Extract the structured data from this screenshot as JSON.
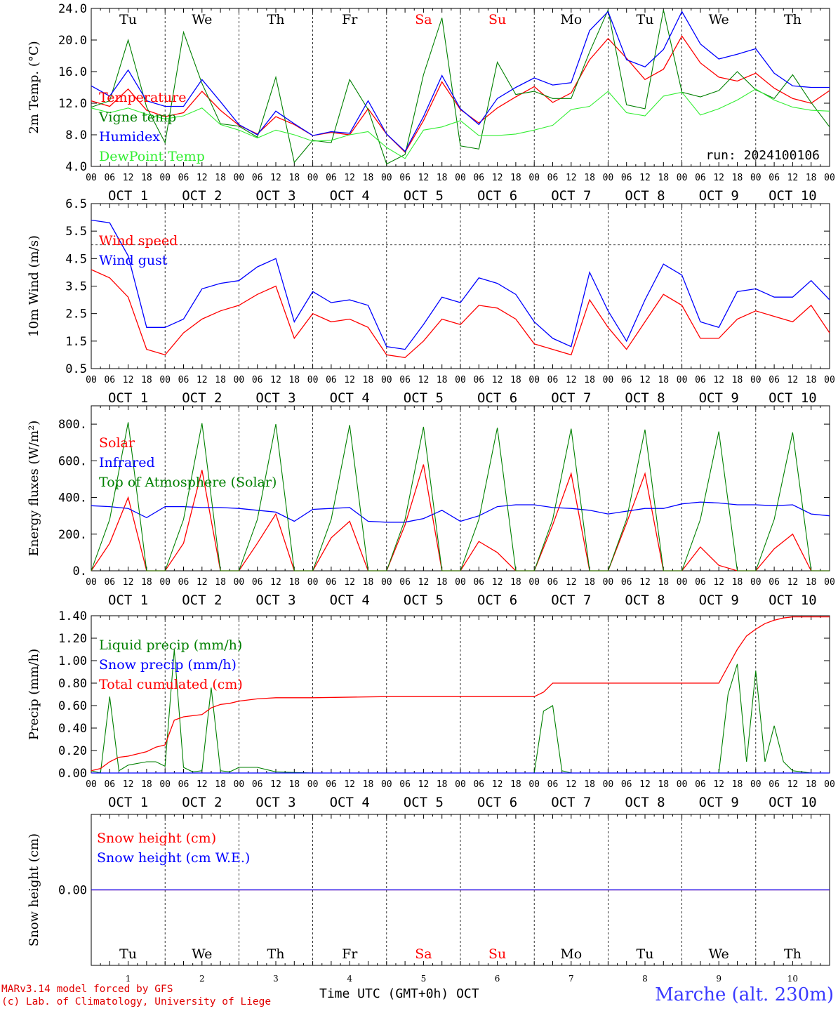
{
  "run_label": "run: 2024100106",
  "station": "Marche (alt. 230m)",
  "footer": {
    "line1": "MARv3.14 model forced by GFS",
    "line2": "(c) Lab. of Climatology, University of Liege"
  },
  "x_title": "Time UTC (GMT+0h) OCT",
  "days": [
    "Tu",
    "We",
    "Th",
    "Fr",
    "Sa",
    "Su",
    "Mo",
    "Tu",
    "We",
    "Th"
  ],
  "weekend_days": [
    4,
    5
  ],
  "date_labels": [
    "OCT  1",
    "OCT  2",
    "OCT  3",
    "OCT  4",
    "OCT  5",
    "OCT  6",
    "OCT  7",
    "OCT  8",
    "OCT  9",
    "OCT 10"
  ],
  "day_numbers": [
    "1",
    "2",
    "3",
    "4",
    "5",
    "6",
    "7",
    "8",
    "9",
    "10"
  ],
  "hour_ticks": [
    "00",
    "06",
    "12",
    "18"
  ],
  "final_tick": "00",
  "colors": {
    "red": "#ff0000",
    "dark_green": "#008000",
    "blue": "#0000ff",
    "light_green": "#33ee33",
    "purple": "#7030a0",
    "day_weekend": "#ff0000"
  },
  "chart_data": [
    {
      "type": "line",
      "ylabel": "2m Temp. (°C)",
      "ylim": [
        4.0,
        24.0
      ],
      "yticks": [
        "4.0",
        "8.0",
        "12.0",
        "16.0",
        "20.0",
        "24.0"
      ],
      "x": [
        0,
        6,
        12,
        18,
        24,
        30,
        36,
        42,
        48,
        54,
        60,
        66,
        72,
        78,
        84,
        90,
        96,
        102,
        108,
        114,
        120,
        126,
        132,
        138,
        144,
        150,
        156,
        162,
        168,
        174,
        180,
        186,
        192,
        198,
        204,
        210,
        216,
        222,
        228,
        234,
        240
      ],
      "series": [
        {
          "name": "Temperature",
          "color": "red",
          "values": [
            12.3,
            11.6,
            13.8,
            11.1,
            10.3,
            10.8,
            13.5,
            11.1,
            9.2,
            8.1,
            10.3,
            9.3,
            7.9,
            8.3,
            8.0,
            11.3,
            8.1,
            5.8,
            9.8,
            14.7,
            11.2,
            9.5,
            11.4,
            12.8,
            14.1,
            12.1,
            13.3,
            17.5,
            20.2,
            17.7,
            15.0,
            16.3,
            20.5,
            17.1,
            15.3,
            14.8,
            15.8,
            13.9,
            12.6,
            12.0,
            13.6
          ]
        },
        {
          "name": "Vigne temp",
          "color": "dark_green",
          "values": [
            11.5,
            12.3,
            20.0,
            11.5,
            7.0,
            21.0,
            14.5,
            9.4,
            9.1,
            7.7,
            15.3,
            4.5,
            7.3,
            7.0,
            15.0,
            11.2,
            4.3,
            5.5,
            15.6,
            22.8,
            6.6,
            6.2,
            17.2,
            13.1,
            13.5,
            12.6,
            12.6,
            18.5,
            23.8,
            11.8,
            11.3,
            23.8,
            13.4,
            12.8,
            13.6,
            16.0,
            13.7,
            12.6,
            15.6,
            12.1,
            9.0
          ]
        },
        {
          "name": "Humidex",
          "color": "blue",
          "values": [
            14.2,
            12.9,
            16.2,
            12.3,
            11.6,
            11.6,
            15.0,
            12.2,
            9.3,
            8.0,
            11.0,
            9.4,
            7.9,
            8.4,
            8.2,
            12.3,
            8.1,
            5.9,
            10.3,
            15.5,
            11.3,
            9.3,
            12.6,
            14.0,
            15.2,
            14.3,
            14.6,
            21.2,
            23.6,
            17.5,
            16.6,
            18.8,
            23.6,
            19.5,
            17.6,
            18.2,
            18.9,
            15.8,
            14.2,
            14.0,
            14.0
          ]
        },
        {
          "name": "DewPoint Temp",
          "color": "light_green",
          "values": [
            11.4,
            10.8,
            11.4,
            10.6,
            10.0,
            10.4,
            11.4,
            9.3,
            8.6,
            7.6,
            8.6,
            8.0,
            7.2,
            7.3,
            8.0,
            8.4,
            6.4,
            5.0,
            8.6,
            9.0,
            9.8,
            7.9,
            7.9,
            8.1,
            8.6,
            9.2,
            11.2,
            11.6,
            13.5,
            10.8,
            10.4,
            12.9,
            13.4,
            10.5,
            11.3,
            12.4,
            13.8,
            12.4,
            11.5,
            11.1,
            11.0
          ]
        }
      ],
      "legend": [
        "Temperature",
        "Vigne temp",
        "Humidex",
        "DewPoint Temp"
      ],
      "run_label_shown": true,
      "show_days": true
    },
    {
      "type": "line",
      "ylabel": "10m Wind (m/s)",
      "ylim": [
        0.5,
        6.5
      ],
      "yticks": [
        "0.5",
        "1.5",
        "2.5",
        "3.5",
        "4.5",
        "5.5",
        "6.5"
      ],
      "dashed_ref": 5.0,
      "x": [
        0,
        6,
        12,
        18,
        24,
        30,
        36,
        42,
        48,
        54,
        60,
        66,
        72,
        78,
        84,
        90,
        96,
        102,
        108,
        114,
        120,
        126,
        132,
        138,
        144,
        150,
        156,
        162,
        168,
        174,
        180,
        186,
        192,
        198,
        204,
        210,
        216,
        222,
        228,
        234,
        240
      ],
      "series": [
        {
          "name": "Wind speed",
          "color": "red",
          "values": [
            4.1,
            3.8,
            3.1,
            1.2,
            1.0,
            1.8,
            2.3,
            2.6,
            2.8,
            3.2,
            3.5,
            1.6,
            2.5,
            2.2,
            2.3,
            2.0,
            1.0,
            0.9,
            1.5,
            2.3,
            2.1,
            2.8,
            2.7,
            2.3,
            1.4,
            1.2,
            1.0,
            3.0,
            2.0,
            1.2,
            2.2,
            3.2,
            2.8,
            1.6,
            1.6,
            2.3,
            2.6,
            2.4,
            2.2,
            2.8,
            1.8
          ]
        },
        {
          "name": "Wind gust",
          "color": "blue",
          "values": [
            5.9,
            5.8,
            4.6,
            2.0,
            2.0,
            2.3,
            3.4,
            3.6,
            3.7,
            4.2,
            4.5,
            2.2,
            3.3,
            2.9,
            3.0,
            2.8,
            1.3,
            1.2,
            2.1,
            3.1,
            2.9,
            3.8,
            3.6,
            3.2,
            2.2,
            1.6,
            1.3,
            4.0,
            2.6,
            1.5,
            3.0,
            4.3,
            3.9,
            2.2,
            2.0,
            3.3,
            3.4,
            3.1,
            3.1,
            3.7,
            3.0
          ]
        }
      ],
      "legend": [
        "Wind speed",
        "Wind gust"
      ]
    },
    {
      "type": "line",
      "ylabel": "Energy fluxes (W/m²)",
      "ylim": [
        0,
        900
      ],
      "yticks": [
        "0.",
        "200.",
        "400.",
        "600.",
        "800."
      ],
      "x": [
        0,
        6,
        12,
        18,
        24,
        30,
        36,
        42,
        48,
        54,
        60,
        66,
        72,
        78,
        84,
        90,
        96,
        102,
        108,
        114,
        120,
        126,
        132,
        138,
        144,
        150,
        156,
        162,
        168,
        174,
        180,
        186,
        192,
        198,
        204,
        210,
        216,
        222,
        228,
        234,
        240
      ],
      "series": [
        {
          "name": "Solar",
          "color": "red",
          "values": [
            0,
            150,
            400,
            0,
            0,
            150,
            550,
            0,
            0,
            150,
            310,
            0,
            0,
            180,
            270,
            0,
            0,
            250,
            580,
            0,
            0,
            160,
            100,
            0,
            0,
            250,
            530,
            0,
            0,
            260,
            530,
            0,
            0,
            130,
            30,
            0,
            0,
            120,
            200,
            0,
            0
          ]
        },
        {
          "name": "Infrared",
          "color": "blue",
          "values": [
            355,
            350,
            340,
            290,
            350,
            350,
            345,
            345,
            340,
            330,
            320,
            270,
            335,
            340,
            345,
            270,
            265,
            265,
            285,
            330,
            270,
            300,
            350,
            360,
            360,
            345,
            340,
            330,
            310,
            325,
            340,
            340,
            365,
            375,
            370,
            360,
            360,
            355,
            360,
            310,
            300
          ]
        },
        {
          "name": "Top of Atmosphere (Solar)",
          "color": "dark_green",
          "values": [
            0,
            280,
            810,
            0,
            0,
            280,
            805,
            0,
            0,
            280,
            800,
            0,
            0,
            280,
            795,
            0,
            0,
            280,
            785,
            0,
            0,
            280,
            780,
            0,
            0,
            280,
            775,
            0,
            0,
            280,
            770,
            0,
            0,
            280,
            760,
            0,
            0,
            280,
            755,
            0,
            0
          ]
        }
      ],
      "legend": [
        "Solar",
        "Infrared",
        "Top of Atmosphere (Solar)"
      ]
    },
    {
      "type": "line",
      "ylabel": "Precip (mm/h)",
      "ylim": [
        0.0,
        1.4
      ],
      "yticks": [
        "0.00",
        "0.20",
        "0.40",
        "0.60",
        "0.80",
        "1.00",
        "1.20",
        "1.40"
      ],
      "x": [
        0,
        3,
        6,
        9,
        12,
        18,
        21,
        24,
        27,
        30,
        33,
        36,
        39,
        42,
        45,
        48,
        54,
        60,
        72,
        96,
        120,
        144,
        147,
        150,
        153,
        156,
        168,
        192,
        204,
        207,
        210,
        213,
        216,
        219,
        222,
        225,
        228,
        234,
        240
      ],
      "series": [
        {
          "name": "Liquid precip (mm/h)",
          "color": "dark_green",
          "values": [
            0.02,
            0.0,
            0.68,
            0.02,
            0.07,
            0.1,
            0.1,
            0.06,
            1.1,
            0.05,
            0.01,
            0.02,
            0.76,
            0.02,
            0.01,
            0.05,
            0.05,
            0.01,
            0.0,
            0.0,
            0.0,
            0.0,
            0.55,
            0.6,
            0.02,
            0.0,
            0.0,
            0.0,
            0.0,
            0.7,
            0.97,
            0.1,
            0.91,
            0.1,
            0.42,
            0.1,
            0.02,
            0.0,
            0.0
          ]
        },
        {
          "name": "Snow precip (mm/h)",
          "color": "blue",
          "values": [
            0,
            0,
            0,
            0,
            0,
            0,
            0,
            0,
            0,
            0,
            0,
            0,
            0,
            0,
            0,
            0,
            0,
            0,
            0,
            0,
            0,
            0,
            0,
            0,
            0,
            0,
            0,
            0,
            0,
            0,
            0,
            0,
            0,
            0,
            0,
            0,
            0,
            0,
            0
          ]
        },
        {
          "name": "Total cumulated (cm)",
          "color": "red",
          "values": [
            0.02,
            0.04,
            0.1,
            0.14,
            0.15,
            0.19,
            0.23,
            0.25,
            0.47,
            0.5,
            0.51,
            0.52,
            0.58,
            0.61,
            0.62,
            0.64,
            0.66,
            0.67,
            0.67,
            0.68,
            0.68,
            0.68,
            0.72,
            0.8,
            0.8,
            0.8,
            0.8,
            0.8,
            0.8,
            0.95,
            1.1,
            1.22,
            1.28,
            1.33,
            1.36,
            1.38,
            1.39,
            1.39,
            1.39
          ]
        }
      ],
      "legend": [
        "Liquid precip (mm/h)",
        "Snow precip (mm/h)",
        "Total cumulated (cm)"
      ]
    },
    {
      "type": "line",
      "ylabel": "Snow height (cm)",
      "ylim": [
        -1.0,
        1.0
      ],
      "yticks": [
        "0.00"
      ],
      "x": [
        0,
        240
      ],
      "series": [
        {
          "name": "Snow height (cm)",
          "color": "red",
          "values": [
            0,
            0
          ]
        },
        {
          "name": "Snow height (cm W.E.)",
          "color": "blue",
          "values": [
            0,
            0
          ]
        }
      ],
      "legend": [
        "Snow height (cm)",
        "Snow height (cm W.E.)"
      ],
      "show_days_bottom": true
    }
  ]
}
